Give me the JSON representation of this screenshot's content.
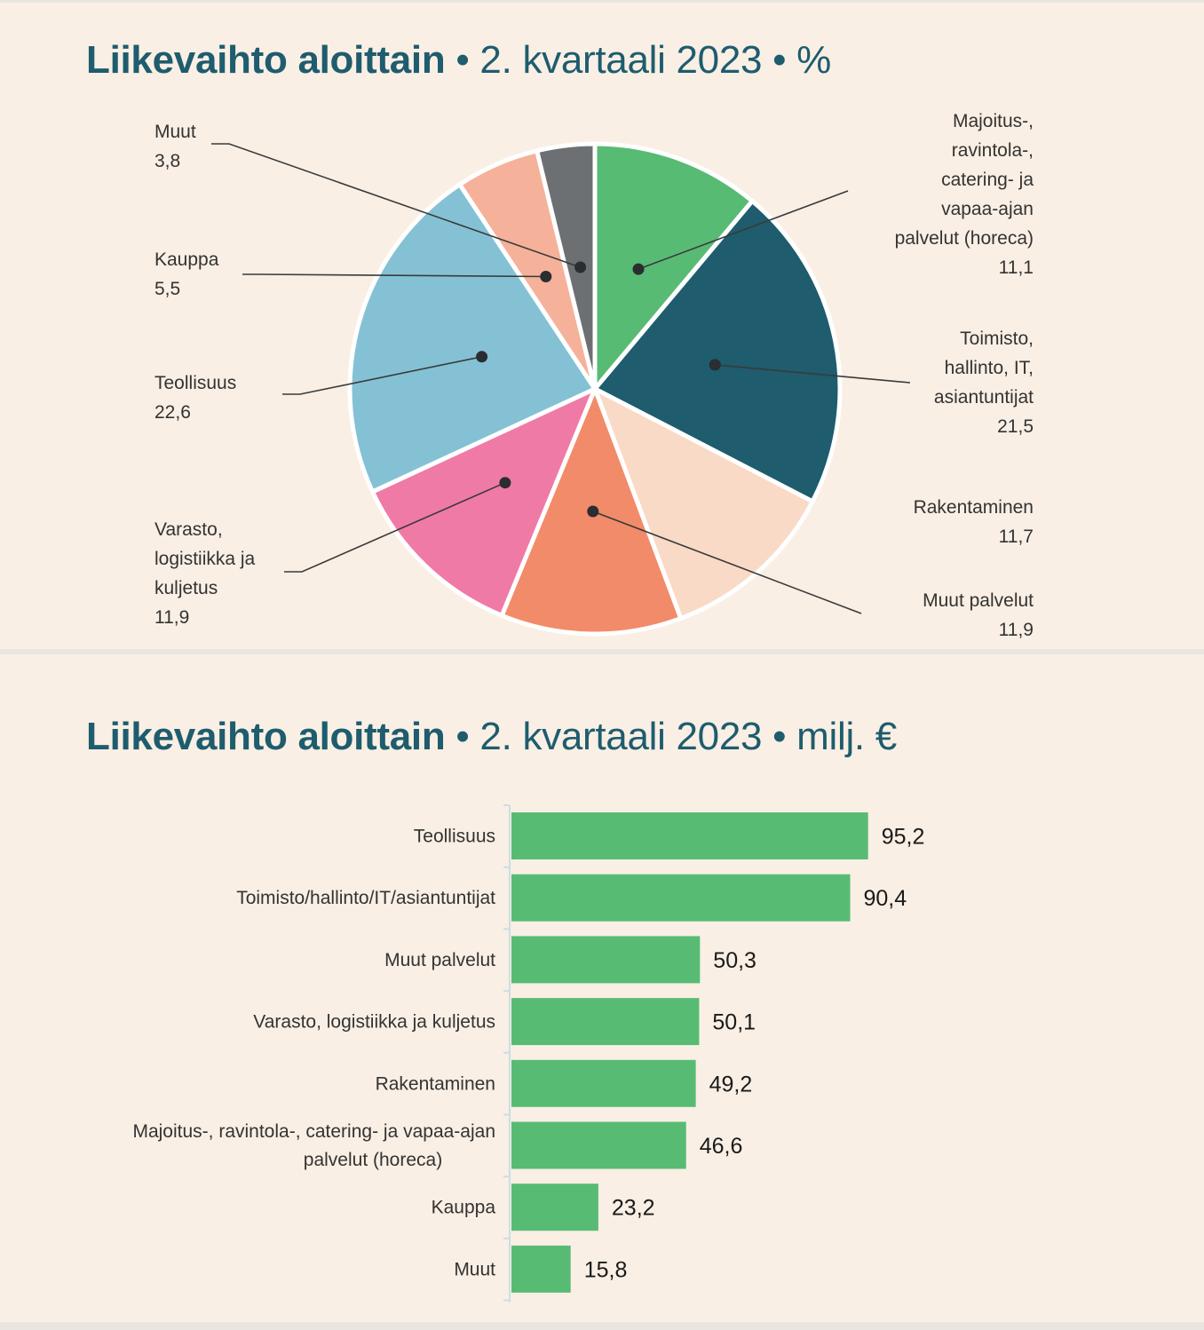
{
  "chart_data": [
    {
      "type": "pie",
      "title": {
        "bold": "Liikevaihto aloittain",
        "rest": "• 2. kvartaali 2023 • %"
      },
      "slices": [
        {
          "label": [
            "Majoitus-,",
            "ravintola-,",
            "catering- ja",
            "vapaa-ajan",
            "palvelut (horeca)"
          ],
          "value": 11.1,
          "display": "11,1",
          "color": "#58bb74"
        },
        {
          "label": [
            "Toimisto,",
            "hallinto, IT,",
            "asiantuntijat"
          ],
          "value": 21.5,
          "display": "21,5",
          "color": "#1e5c6e"
        },
        {
          "label": [
            "Rakentaminen"
          ],
          "value": 11.7,
          "display": "11,7",
          "color": "#f9dac6"
        },
        {
          "label": [
            "Muut palvelut"
          ],
          "value": 11.9,
          "display": "11,9",
          "color": "#f28b69"
        },
        {
          "label": [
            "Varasto,",
            "logistiikka ja",
            "kuljetus"
          ],
          "value": 11.9,
          "display": "11,9",
          "color": "#f07aa6"
        },
        {
          "label": [
            "Teollisuus"
          ],
          "value": 22.6,
          "display": "22,6",
          "color": "#85c1d5"
        },
        {
          "label": [
            "Kauppa"
          ],
          "value": 5.5,
          "display": "5,5",
          "color": "#f5b19a"
        },
        {
          "label": [
            "Muut"
          ],
          "value": 3.8,
          "display": "3,8",
          "color": "#6c7073"
        }
      ]
    },
    {
      "type": "bar",
      "orientation": "horizontal",
      "title": {
        "bold": "Liikevaihto aloittain",
        "rest": "• 2. kvartaali 2023 •  milj. €"
      },
      "categories": [
        [
          "Teollisuus"
        ],
        [
          "Toimisto/hallinto/IT/asiantuntijat"
        ],
        [
          "Muut palvelut"
        ],
        [
          "Varasto, logistiikka ja kuljetus"
        ],
        [
          "Rakentaminen"
        ],
        [
          "Majoitus-, ravintola-, catering- ja vapaa-ajan",
          "palvelut (horeca)"
        ],
        [
          "Kauppa"
        ],
        [
          "Muut"
        ]
      ],
      "values": [
        95.2,
        90.4,
        50.3,
        50.1,
        49.2,
        46.6,
        23.2,
        15.8
      ],
      "value_labels": [
        "95,2",
        "90,4",
        "50,3",
        "50,1",
        "49,2",
        "46,6",
        "23,2",
        "15,8"
      ],
      "bar_color": "#58bb74",
      "grid": false
    }
  ]
}
